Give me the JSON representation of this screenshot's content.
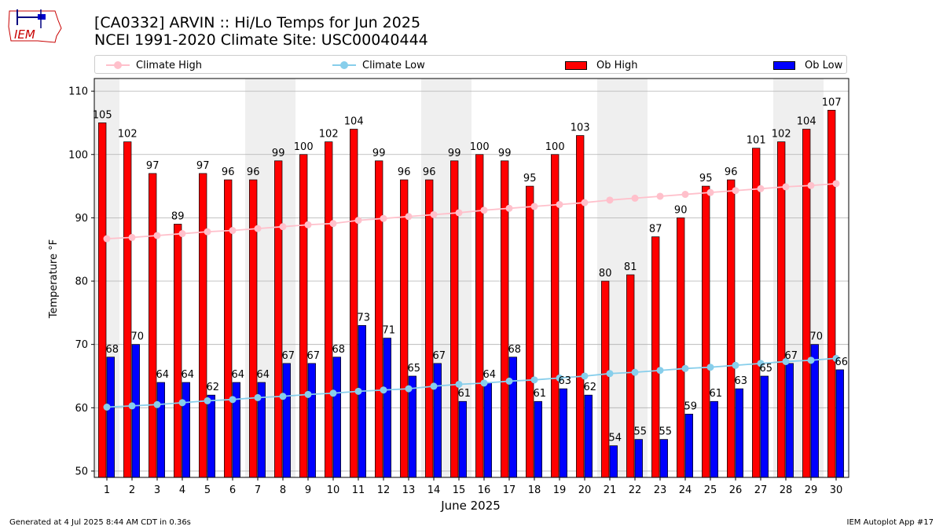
{
  "header": {
    "logo_text": "IEM",
    "title_line1": "[CA0332] ARVIN :: Hi/Lo Temps for Jun 2025",
    "title_line2": "NCEI 1991-2020 Climate Site: USC00040444"
  },
  "footer": {
    "generated": "Generated at 4 Jul 2025 8:44 AM CDT in 0.36s",
    "app": "IEM Autoplot App #17"
  },
  "legend": [
    {
      "label": "Climate High",
      "kind": "line",
      "color": "#ffc0cb"
    },
    {
      "label": "Climate Low",
      "kind": "line",
      "color": "#87ceeb"
    },
    {
      "label": "Ob High",
      "kind": "box",
      "color": "#ff0000"
    },
    {
      "label": "Ob Low",
      "kind": "box",
      "color": "#0000ff"
    }
  ],
  "chart_data": {
    "type": "bar",
    "xlabel": "June 2025",
    "ylabel": "Temperature °F",
    "ylim": [
      49,
      112
    ],
    "yticks": [
      50,
      60,
      70,
      80,
      90,
      100,
      110
    ],
    "grid": true,
    "legend_position": "top",
    "weekend_shading_days": [
      1,
      7,
      8,
      14,
      15,
      21,
      22,
      28,
      29
    ],
    "categories": [
      1,
      2,
      3,
      4,
      5,
      6,
      7,
      8,
      9,
      10,
      11,
      12,
      13,
      14,
      15,
      16,
      17,
      18,
      19,
      20,
      21,
      22,
      23,
      24,
      25,
      26,
      27,
      28,
      29,
      30
    ],
    "series": [
      {
        "name": "Ob High",
        "kind": "bar",
        "color": "#ff0000",
        "values": [
          105,
          102,
          97,
          89,
          97,
          96,
          96,
          99,
          100,
          102,
          104,
          99,
          96,
          96,
          99,
          100,
          99,
          95,
          100,
          103,
          80,
          81,
          87,
          90,
          95,
          96,
          101,
          102,
          104,
          107
        ]
      },
      {
        "name": "Ob Low",
        "kind": "bar",
        "color": "#0000ff",
        "values": [
          68,
          70,
          64,
          64,
          62,
          64,
          64,
          67,
          67,
          68,
          73,
          71,
          65,
          67,
          61,
          64,
          68,
          61,
          63,
          62,
          54,
          55,
          55,
          59,
          61,
          63,
          65,
          67,
          70,
          66
        ]
      },
      {
        "name": "Climate High",
        "kind": "line",
        "color": "#ffc0cb",
        "values": [
          86.7,
          86.9,
          87.2,
          87.5,
          87.8,
          88.0,
          88.3,
          88.6,
          88.9,
          89.1,
          89.6,
          89.9,
          90.2,
          90.5,
          90.8,
          91.2,
          91.5,
          91.8,
          92.1,
          92.4,
          92.8,
          93.1,
          93.4,
          93.7,
          94.0,
          94.3,
          94.6,
          94.9,
          95.1,
          95.4
        ]
      },
      {
        "name": "Climate Low",
        "kind": "line",
        "color": "#87ceeb",
        "values": [
          60.1,
          60.3,
          60.5,
          60.8,
          61.1,
          61.3,
          61.6,
          61.8,
          62.1,
          62.3,
          62.6,
          62.8,
          63.0,
          63.4,
          63.7,
          63.9,
          64.2,
          64.4,
          64.7,
          65.0,
          65.4,
          65.6,
          65.9,
          66.2,
          66.4,
          66.7,
          67.0,
          67.3,
          67.5,
          67.8
        ]
      }
    ]
  }
}
